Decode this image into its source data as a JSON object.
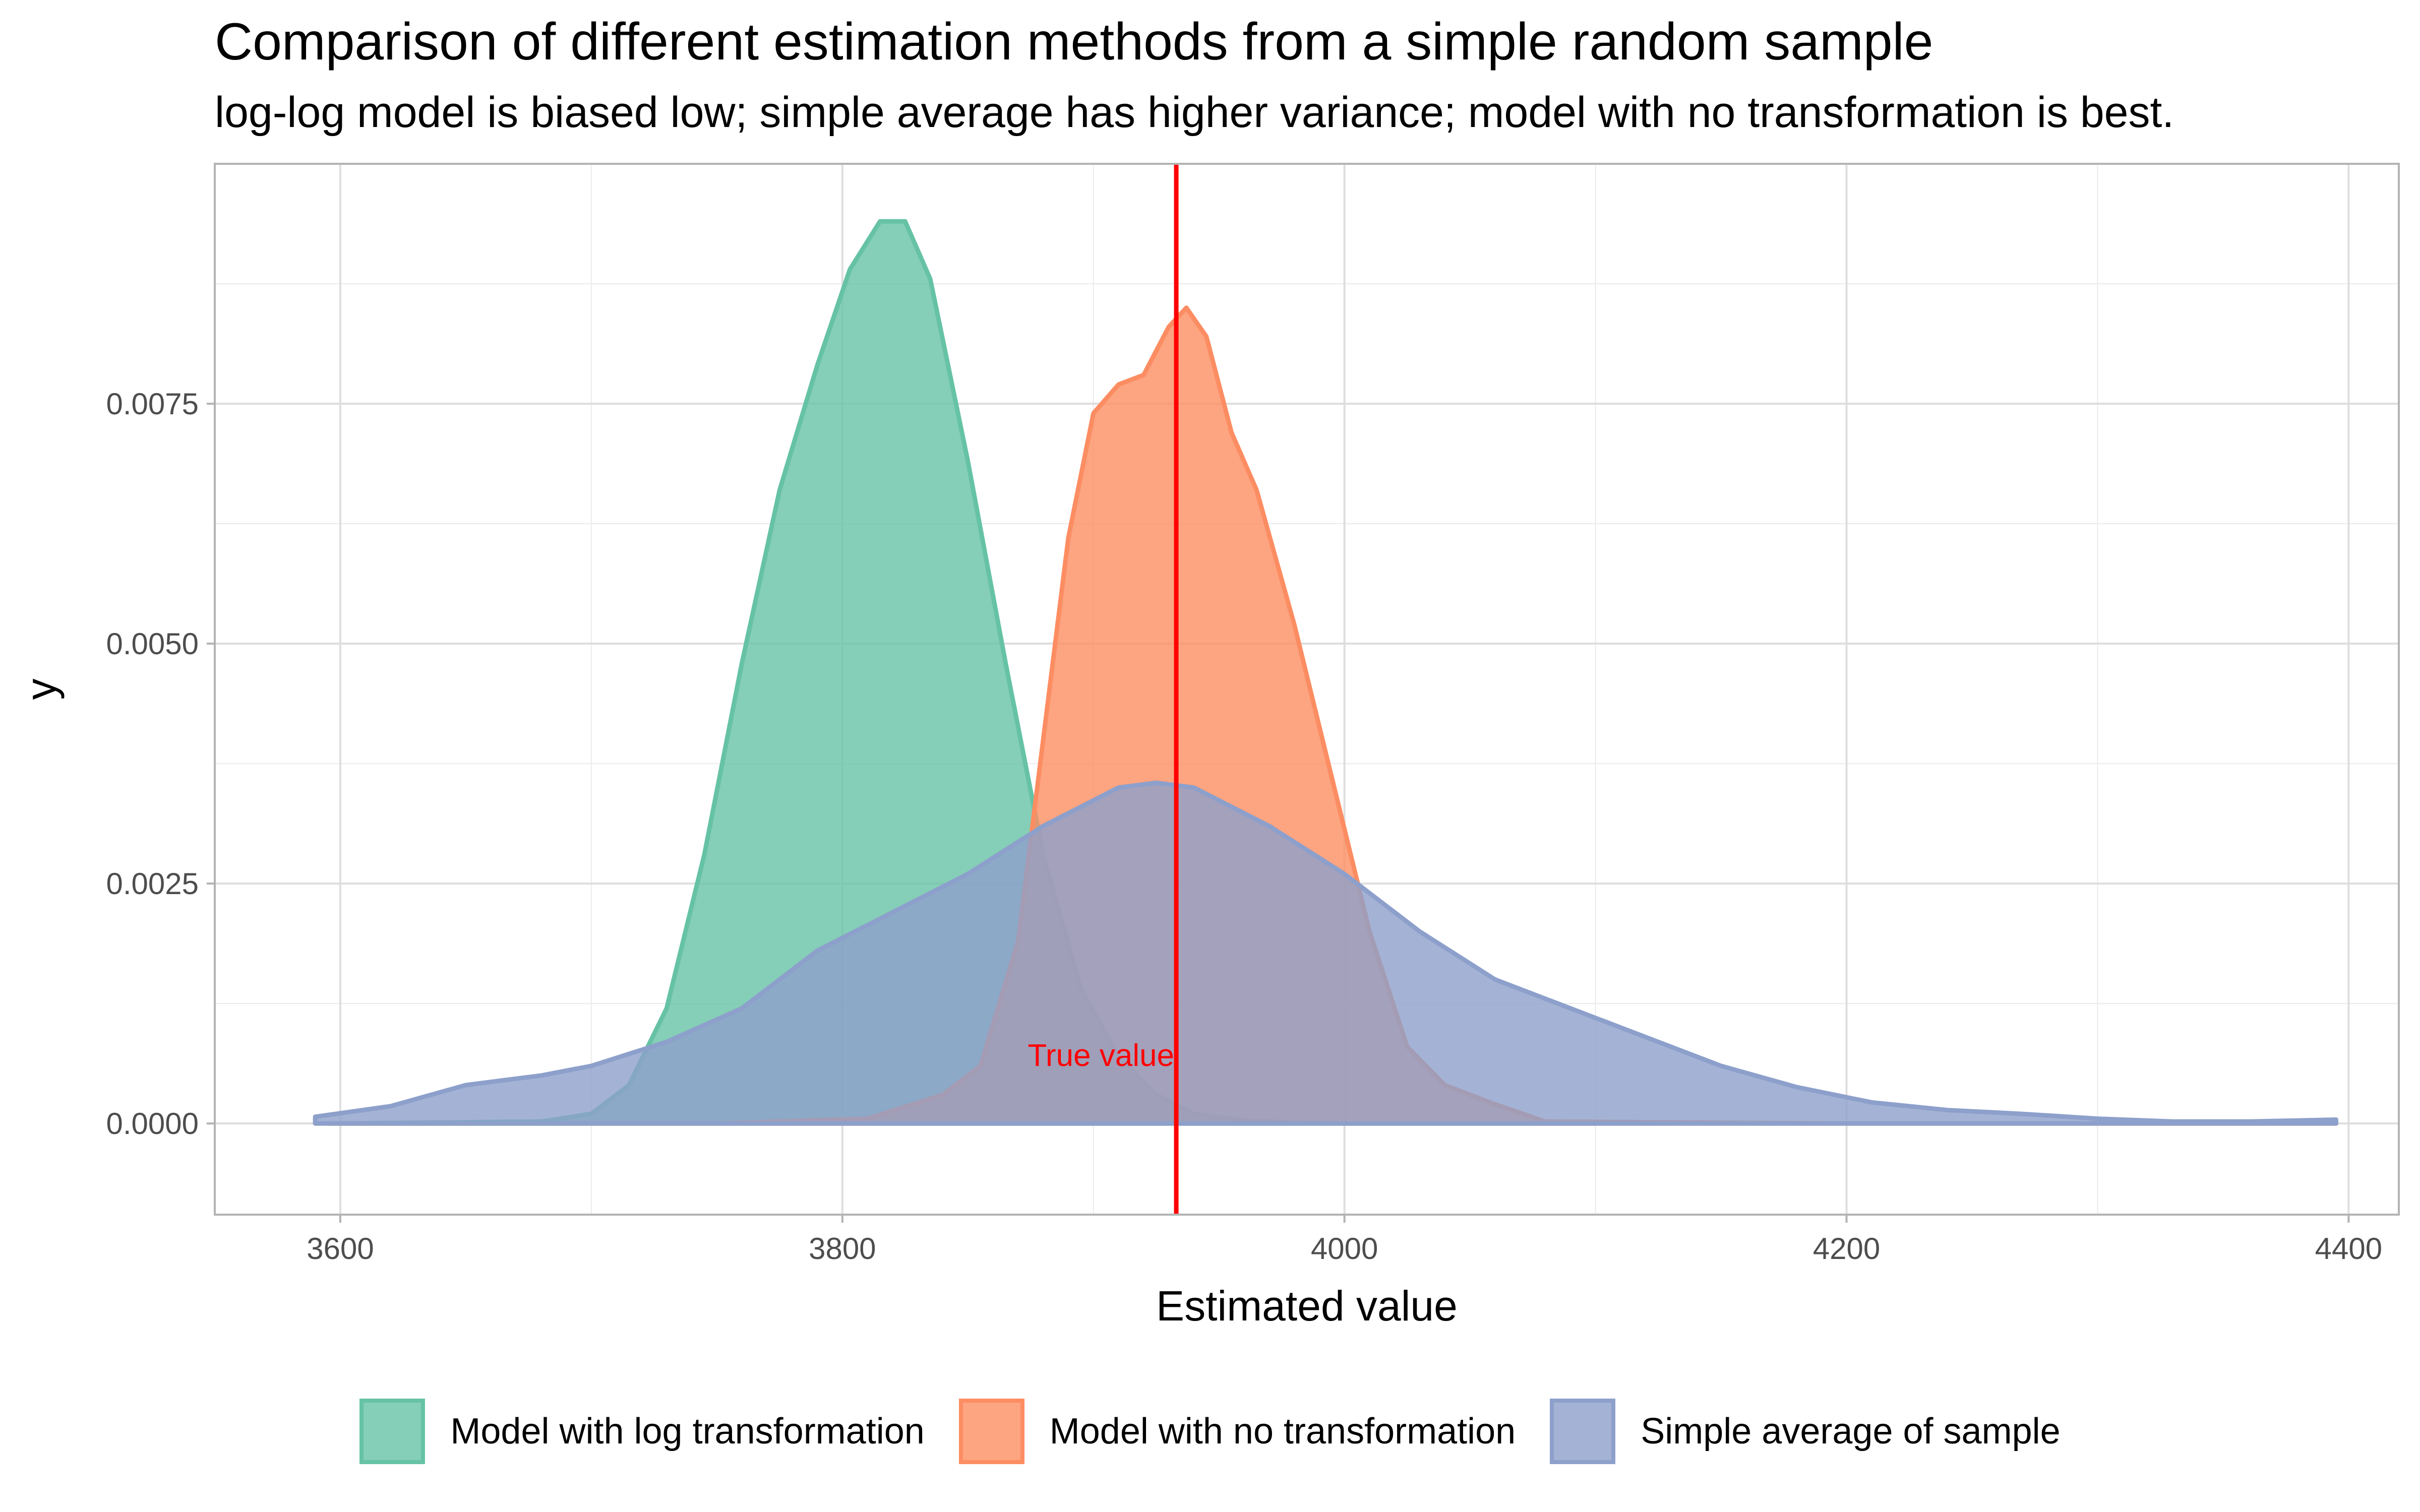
{
  "chart_data": {
    "type": "area",
    "title": "Comparison of different estimation methods from a simple random sample",
    "subtitle": "log-log model is biased low; simple average has higher variance; model with no transformation is best.",
    "xlabel": "Estimated value",
    "ylabel": "y",
    "xlim": [
      3550,
      4420
    ],
    "ylim": [
      -0.00095,
      0.01
    ],
    "x_ticks": [
      3600,
      3800,
      4000,
      4200,
      4400
    ],
    "x_tick_labels": [
      "3600",
      "3800",
      "4000",
      "4200",
      "4400"
    ],
    "y_ticks": [
      0,
      0.0025,
      0.005,
      0.0075
    ],
    "y_tick_labels": [
      "0.0000",
      "0.0025",
      "0.0050",
      "0.0075"
    ],
    "grid": true,
    "legend_position": "bottom",
    "series": [
      {
        "name": "Model with log transformation",
        "color": "#66c2a5",
        "x": [
          3595,
          3680,
          3700,
          3715,
          3730,
          3745,
          3760,
          3775,
          3790,
          3803,
          3815,
          3825,
          3835,
          3850,
          3865,
          3880,
          3895,
          3910,
          3925,
          3940,
          3960,
          3980,
          4000,
          4050,
          4100
        ],
        "y": [
          0,
          2e-05,
          0.0001,
          0.0004,
          0.0012,
          0.0028,
          0.0048,
          0.0066,
          0.0079,
          0.0089,
          0.0094,
          0.0094,
          0.0088,
          0.0069,
          0.0048,
          0.0028,
          0.0014,
          0.0007,
          0.0003,
          0.0001,
          3e-05,
          1e-05,
          0,
          0,
          0
        ]
      },
      {
        "name": "Model with no transformation",
        "color": "#fc8d62",
        "x": [
          3595,
          3750,
          3810,
          3840,
          3855,
          3870,
          3880,
          3890,
          3900,
          3910,
          3920,
          3930,
          3937,
          3945,
          3955,
          3965,
          3980,
          3995,
          4010,
          4025,
          4040,
          4060,
          4080,
          4200,
          4395
        ],
        "y": [
          0,
          0,
          5e-05,
          0.0003,
          0.0006,
          0.0019,
          0.004,
          0.0061,
          0.0074,
          0.0077,
          0.0078,
          0.0083,
          0.0085,
          0.0082,
          0.0072,
          0.0066,
          0.0052,
          0.0036,
          0.002,
          0.0008,
          0.0004,
          0.0002,
          2e-05,
          0,
          0
        ]
      },
      {
        "name": "Simple average of sample",
        "color": "#8da0cb",
        "x": [
          3590,
          3620,
          3650,
          3680,
          3700,
          3730,
          3760,
          3790,
          3820,
          3850,
          3880,
          3910,
          3925,
          3940,
          3970,
          4000,
          4030,
          4060,
          4090,
          4120,
          4150,
          4180,
          4210,
          4240,
          4270,
          4300,
          4330,
          4360,
          4395
        ],
        "y": [
          7e-05,
          0.00018,
          0.0004,
          0.0005,
          0.0006,
          0.00085,
          0.0012,
          0.0018,
          0.0022,
          0.0026,
          0.0031,
          0.0035,
          0.00355,
          0.0035,
          0.0031,
          0.0026,
          0.002,
          0.0015,
          0.0012,
          0.0009,
          0.0006,
          0.00038,
          0.00022,
          0.00014,
          0.0001,
          5e-05,
          2e-05,
          2e-05,
          4e-05
        ]
      }
    ],
    "annotations": [
      {
        "type": "vline",
        "x": 3933,
        "color": "#ff0000"
      },
      {
        "type": "text",
        "label": "True value",
        "x": 3933,
        "y": 0.0006,
        "color": "#ff0000",
        "anchor": "end"
      }
    ]
  }
}
